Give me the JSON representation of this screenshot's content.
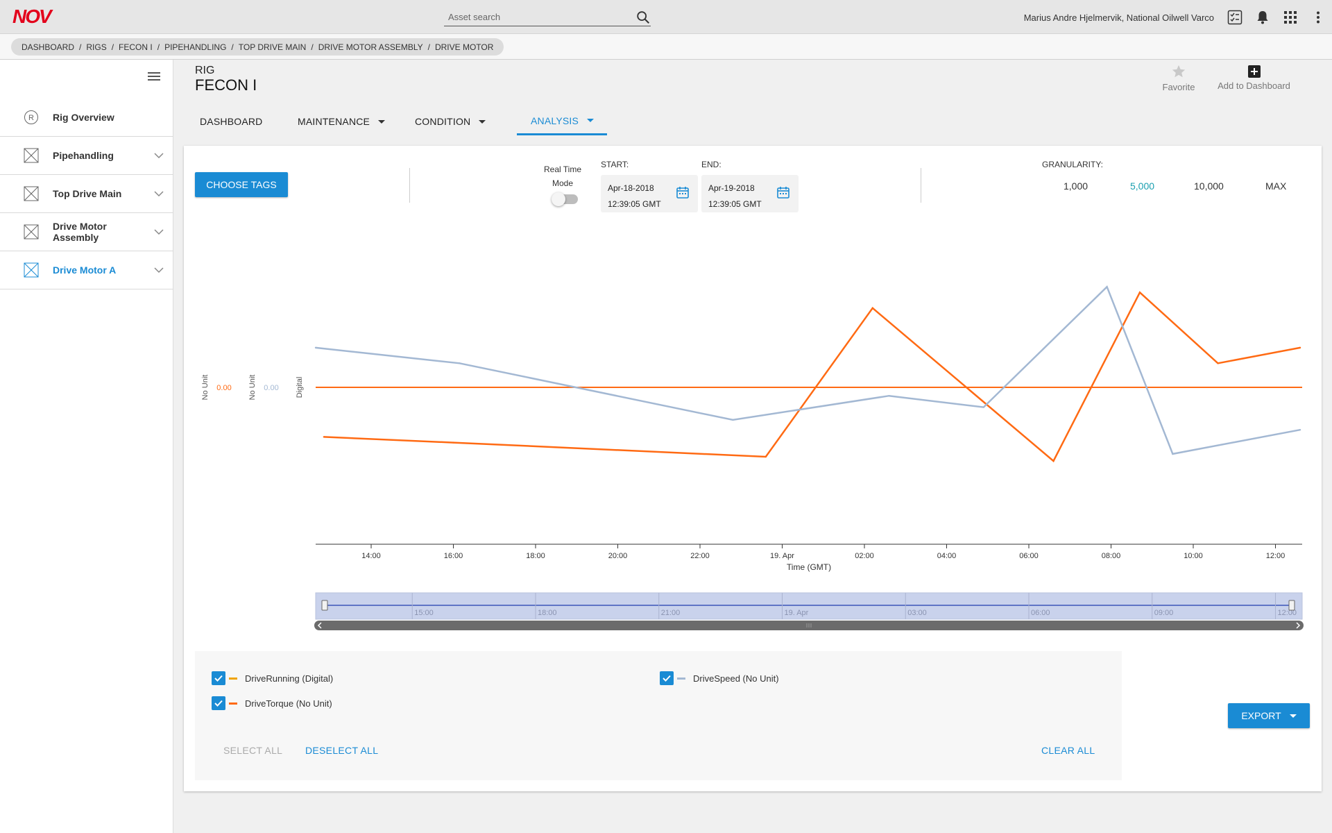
{
  "app": {
    "logo_text": "NOV",
    "search_placeholder": "Asset search",
    "user": "Marius Andre Hjelmervik, National Oilwell Varco"
  },
  "breadcrumb": [
    "DASHBOARD",
    "RIGS",
    "FECON I",
    "PIPEHANDLING",
    "TOP DRIVE MAIN",
    "DRIVE MOTOR ASSEMBLY",
    "DRIVE MOTOR"
  ],
  "sidebar": {
    "items": [
      {
        "label": "Rig Overview",
        "icon": "rig-icon",
        "expandable": false,
        "active": false
      },
      {
        "label": "Pipehandling",
        "icon": "asset-icon",
        "expandable": true,
        "active": false
      },
      {
        "label": "Top Drive Main",
        "icon": "asset-icon",
        "expandable": true,
        "active": false
      },
      {
        "label": "Drive Motor Assembly",
        "icon": "asset-icon",
        "expandable": true,
        "active": false
      },
      {
        "label": "Drive Motor A",
        "icon": "asset-icon",
        "expandable": true,
        "active": true
      }
    ]
  },
  "header": {
    "rig_label": "RIG",
    "rig_name": "FECON I",
    "favorite_label": "Favorite",
    "add_dashboard_label": "Add to Dashboard"
  },
  "tabs": [
    {
      "label": "DASHBOARD",
      "dropdown": false,
      "active": false
    },
    {
      "label": "MAINTENANCE",
      "dropdown": true,
      "active": false
    },
    {
      "label": "CONDITION",
      "dropdown": true,
      "active": false
    },
    {
      "label": "ANALYSIS",
      "dropdown": true,
      "active": true
    }
  ],
  "controls": {
    "choose_tags": "CHOOSE TAGS",
    "real_time_label_1": "Real Time",
    "real_time_label_2": "Mode",
    "real_time_on": false,
    "start_label": "START:",
    "start_date": "Apr-18-2018",
    "start_time": "12:39:05 GMT",
    "end_label": "END:",
    "end_date": "Apr-19-2018",
    "end_time": "12:39:05 GMT",
    "granularity_label": "GRANULARITY:",
    "granularity_options": [
      "1,000",
      "5,000",
      "10,000",
      "MAX"
    ],
    "granularity_selected": "5,000"
  },
  "colors": {
    "accent": "#1a8bd4",
    "drive_running": "#f0a300",
    "drive_torque": "#ff6a13",
    "drive_speed": "#a3b8d3"
  },
  "chart_data": {
    "type": "line",
    "xlabel": "Time (GMT)",
    "x_ticks": [
      "14:00",
      "16:00",
      "18:00",
      "20:00",
      "22:00",
      "19. Apr",
      "02:00",
      "04:00",
      "06:00",
      "08:00",
      "10:00",
      "12:00"
    ],
    "x_range_hours": [
      12.65,
      36.65
    ],
    "y_axes": [
      {
        "label": "No Unit",
        "value": "0.00",
        "color": "#ff6a13"
      },
      {
        "label": "No Unit",
        "value": "0.00",
        "color": "#a3b8d3"
      },
      {
        "label": "Digital",
        "value": "",
        "color": "#555555"
      }
    ],
    "series": [
      {
        "name": "DriveTorque (No Unit)",
        "color": "#ff6a13",
        "points": [
          [
            12.85,
            -0.35
          ],
          [
            16.0,
            -0.39
          ],
          [
            23.6,
            -0.49
          ],
          [
            26.2,
            0.56
          ],
          [
            30.6,
            -0.52
          ],
          [
            32.7,
            0.67
          ],
          [
            34.6,
            0.17
          ],
          [
            36.6,
            0.28
          ]
        ]
      },
      {
        "name": "DriveSpeed (No Unit)",
        "color": "#a3b8d3",
        "points": [
          [
            12.65,
            0.28
          ],
          [
            16.15,
            0.17
          ],
          [
            22.8,
            -0.23
          ],
          [
            26.6,
            -0.06
          ],
          [
            28.9,
            -0.14
          ],
          [
            31.9,
            0.71
          ],
          [
            33.5,
            -0.47
          ],
          [
            36.6,
            -0.3
          ]
        ]
      },
      {
        "name": "DriveRunning (Digital)",
        "color": "#f0a300",
        "points": []
      }
    ],
    "baseline_value": 0,
    "navigator_ticks": [
      "15:00",
      "18:00",
      "21:00",
      "19. Apr",
      "03:00",
      "06:00",
      "09:00",
      "12:00"
    ]
  },
  "legend": {
    "items": [
      {
        "label": "DriveRunning (Digital)",
        "color": "#f0a300",
        "checked": true
      },
      {
        "label": "DriveTorque (No Unit)",
        "color": "#ff6a13",
        "checked": true
      },
      {
        "label": "DriveSpeed (No Unit)",
        "color": "#a3b8d3",
        "checked": true
      }
    ],
    "select_all": "SELECT ALL",
    "deselect_all": "DESELECT ALL",
    "clear_all": "CLEAR ALL"
  },
  "export_label": "EXPORT"
}
